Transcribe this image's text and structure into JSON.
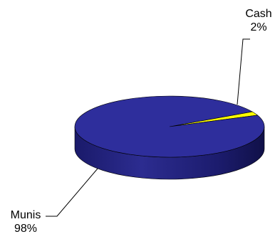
{
  "chart_data": {
    "type": "pie",
    "three_d": true,
    "slices": [
      {
        "label": "Cash",
        "value": 2,
        "display": "2%",
        "color": "#ffff00"
      },
      {
        "label": "Munis",
        "value": 98,
        "display": "98%",
        "color": "#2e2e9c"
      }
    ],
    "legend": "none",
    "labels": "outside-with-leader-lines"
  }
}
